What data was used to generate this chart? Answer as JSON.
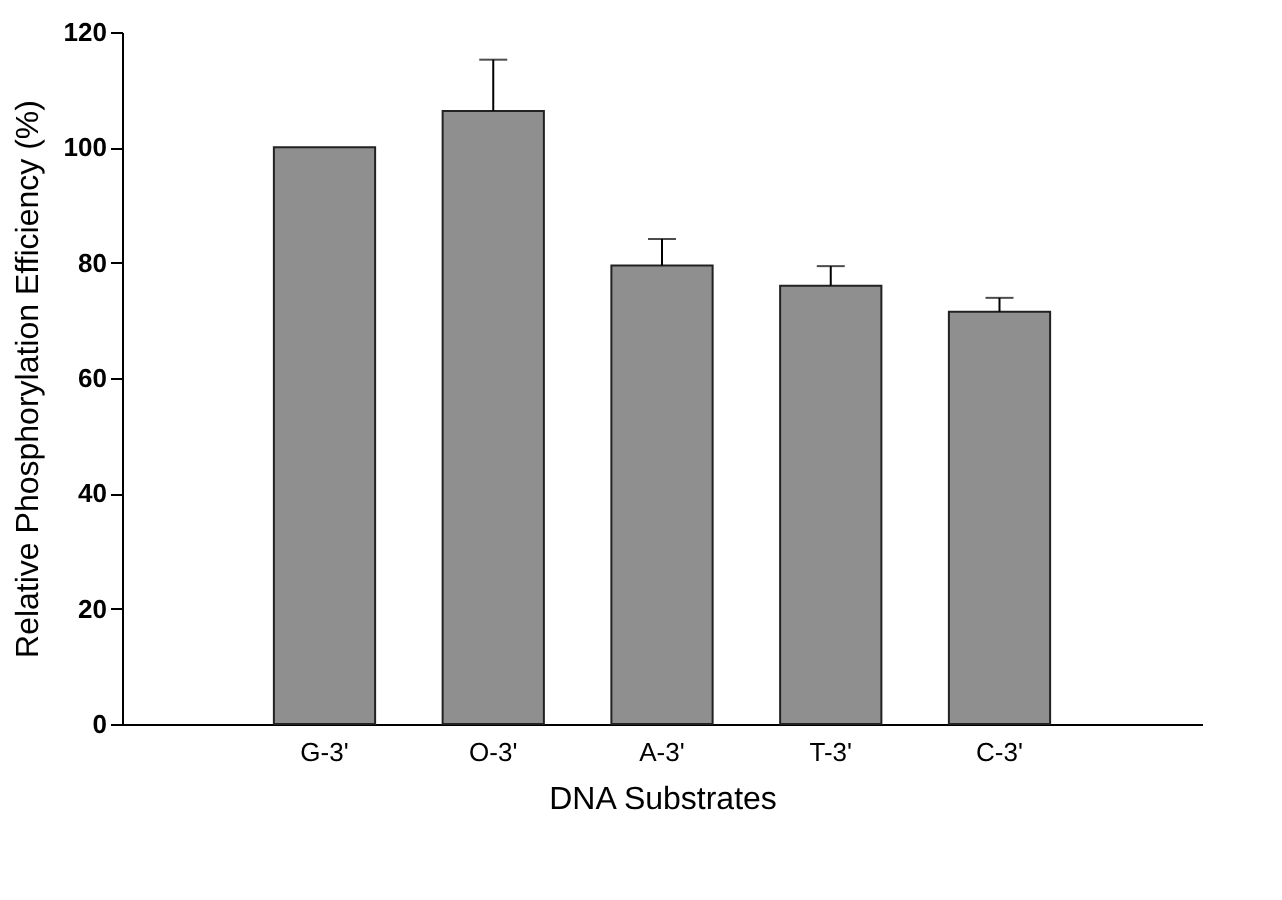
{
  "chart_data": {
    "type": "bar",
    "xlabel": "DNA Substrates",
    "ylabel": "Relative Phosphorylation Efficiency (%)",
    "categories": [
      "G-3'",
      "O-3'",
      "A-3'",
      "T-3'",
      "C-3'"
    ],
    "values": [
      100,
      106.3,
      79.5,
      76.0,
      71.5
    ],
    "errors": [
      null,
      [
        106.3,
        115.2
      ],
      [
        79.5,
        84.1
      ],
      [
        76.0,
        79.4
      ],
      [
        71.5,
        73.9
      ]
    ],
    "color": "#8f8f8f",
    "ylim": [
      0,
      120
    ],
    "yticks": [
      0,
      20,
      40,
      60,
      80,
      100,
      120
    ],
    "grid": false
  }
}
